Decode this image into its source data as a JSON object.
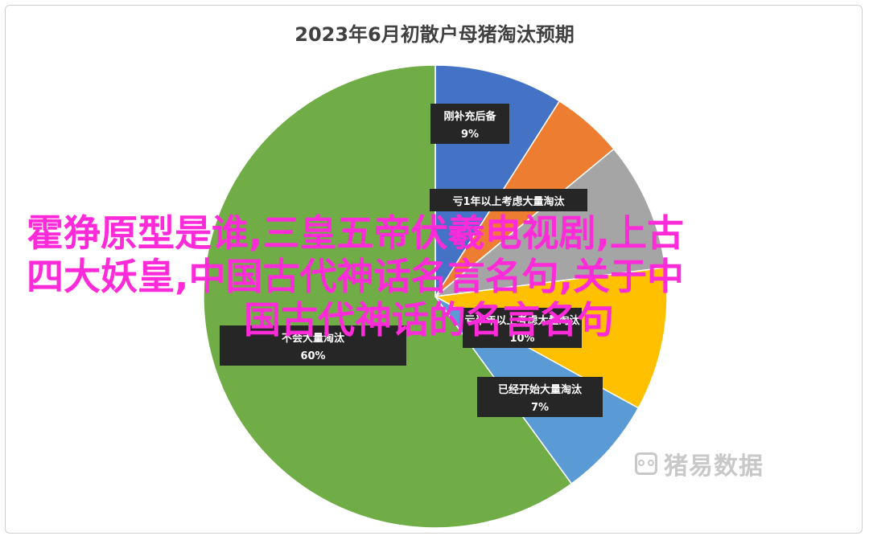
{
  "chart_data": {
    "type": "pie",
    "title": "2023年6月初散户母猪淘汰预期",
    "slices": [
      {
        "label": "刚补充后备",
        "value": 9,
        "display": "9%",
        "color": "#4472C4"
      },
      {
        "label": "",
        "value": 5,
        "display": "",
        "color": "#ED7D31"
      },
      {
        "label": "亏1年以上考虑大量淘汰",
        "value": 9,
        "display": "",
        "color": "#A5A5A5"
      },
      {
        "label": "亏半年以上考虑大量淘汰",
        "value": 10,
        "display": "10%",
        "color": "#FFC000"
      },
      {
        "label": "已经开始大量淘汰",
        "value": 7,
        "display": "7%",
        "color": "#5B9BD5"
      },
      {
        "label": "不会大量淘汰",
        "value": 60,
        "display": "60%",
        "color": "#70AD47"
      }
    ],
    "legend": "none"
  },
  "watermark": {
    "text": "猪易数据"
  },
  "overlay": {
    "line1": "霍狰原型是谁,三皇五帝伏羲电视剧,上古",
    "line2": "四大妖皇,中国古代神话名言名句,关于中",
    "line3": "国古代神话的名言名句"
  }
}
